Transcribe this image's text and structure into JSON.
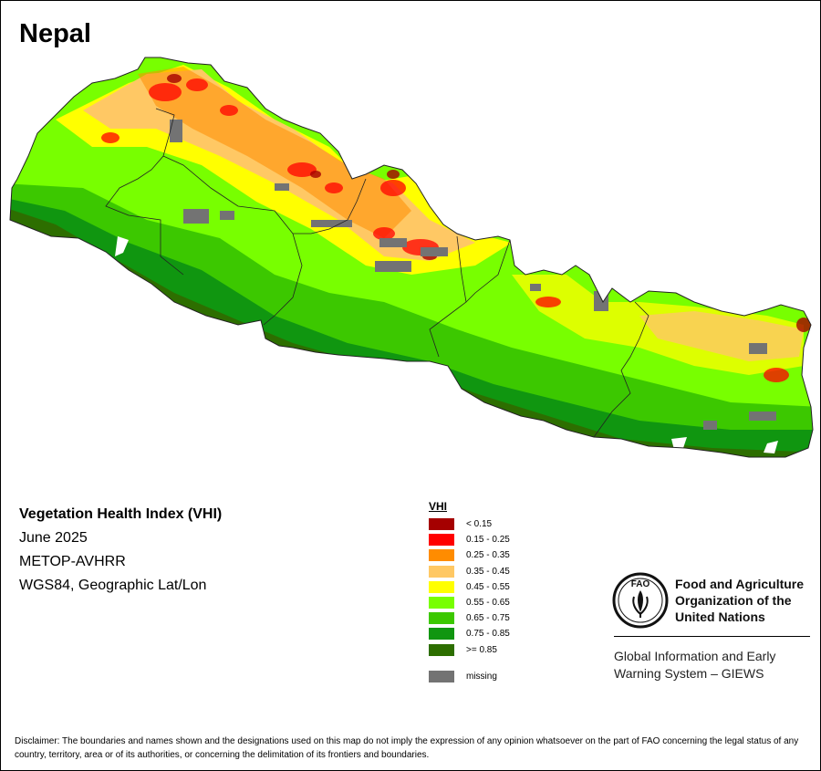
{
  "map_title": "Nepal",
  "info": {
    "title": "Vegetation Health Index (VHI)",
    "date": "June 2025",
    "sensor": "METOP-AVHRR",
    "projection": "WGS84, Geographic Lat/Lon"
  },
  "legend": {
    "title": "VHI",
    "classes": [
      {
        "label": "< 0.15",
        "color": "#a50000"
      },
      {
        "label": "0.15 - 0.25",
        "color": "#ff0000"
      },
      {
        "label": "0.25 - 0.35",
        "color": "#ff8c00"
      },
      {
        "label": "0.35 - 0.45",
        "color": "#ffc864"
      },
      {
        "label": "0.45 - 0.55",
        "color": "#ffff00"
      },
      {
        "label": "0.55 - 0.65",
        "color": "#78ff00"
      },
      {
        "label": "0.65 - 0.75",
        "color": "#3cc800"
      },
      {
        "label": "0.75 - 0.85",
        "color": "#109610"
      },
      {
        "label": ">= 0.85",
        "color": "#2d6e00"
      }
    ],
    "missing": {
      "label": "missing",
      "color": "#737373"
    }
  },
  "organization": {
    "logo_text": "FAO",
    "name_lines": [
      "Food and Agriculture",
      "Organization of the",
      "United Nations"
    ],
    "system_lines": [
      "Global Information and Early",
      "Warning System – GIEWS"
    ]
  },
  "disclaimer": "Disclaimer: The boundaries and names shown and the designations used on this map do not imply the expression of any opinion whatsoever on the part of FAO concerning the legal status of any country, territory, area or of its authorities, or concerning the delimitation of its frontiers and boundaries."
}
